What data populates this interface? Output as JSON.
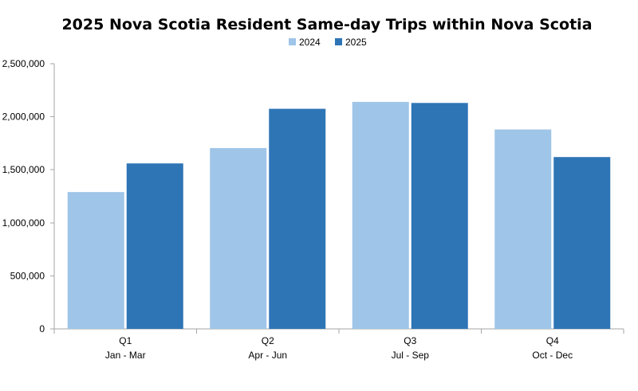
{
  "chart_data": {
    "type": "bar",
    "title": "2025 Nova Scotia Resident Same-day Trips within Nova Scotia",
    "xlabel": "",
    "ylabel": "",
    "categories": [
      [
        "Q1",
        "Jan - Mar"
      ],
      [
        "Q2",
        "Apr - Jun"
      ],
      [
        "Q3",
        "Jul - Sep"
      ],
      [
        "Q4",
        "Oct - Dec"
      ]
    ],
    "series": [
      {
        "name": "2024",
        "color": "#9fc5e8",
        "values": [
          1290000,
          1705000,
          2140000,
          1880000
        ]
      },
      {
        "name": "2025",
        "color": "#2e75b6",
        "values": [
          1560000,
          2075000,
          2130000,
          1620000
        ]
      }
    ],
    "ylim": [
      0,
      2500000
    ],
    "yticks": [
      0,
      500000,
      1000000,
      1500000,
      2000000,
      2500000
    ],
    "ytick_labels": [
      "0",
      "500,000",
      "1,000,000",
      "1,500,000",
      "2,000,000",
      "2,500,000"
    ],
    "grid": false,
    "legend_position": "top-center"
  }
}
